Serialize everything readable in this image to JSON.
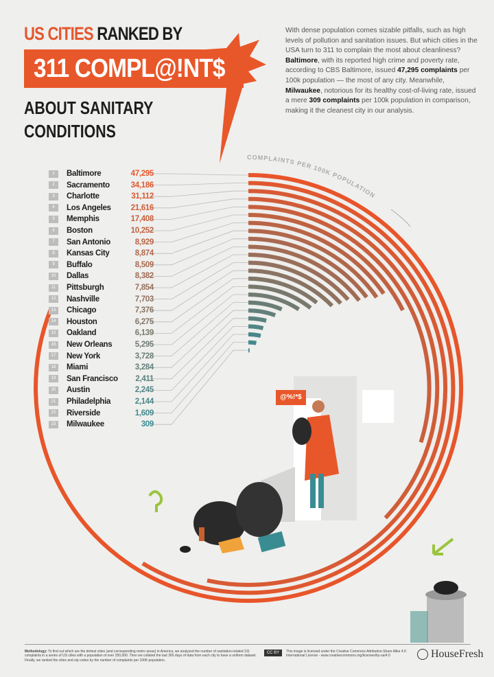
{
  "header": {
    "title_orange": "US CITIES",
    "title_dark": "RANKED BY",
    "banner": "311 COMPL@!NT$",
    "subtitle_line1": "ABOUT SANITARY",
    "subtitle_line2": "CONDITIONS"
  },
  "intro": {
    "p1": "With dense population comes sizable pitfalls, such as high levels of pollution and sanitation issues. But which cities in the USA turn to 311 to complain the most about cleanliness? ",
    "b1": "Baltimore",
    "p2": ", with its reported high crime and poverty rate, according to CBS Baltimore, issued ",
    "b2": "47,295 complaints",
    "p3": " per 100k population — the most of any city. Meanwhile, ",
    "b3": "Milwaukee",
    "p4": ", notorious for its healthy cost-of-living rate, issued a mere ",
    "b4": "309 complaints",
    "p5": " per 100k population in comparison, making it the cleanest city in our analysis."
  },
  "illustration": {
    "speech_bubble": "@%!*$"
  },
  "colors": {
    "high": "#e8552a",
    "low": "#3a8c93",
    "background": "#efefed"
  },
  "chart_data": {
    "type": "bar",
    "layout": "radial",
    "axis_label": "COMPLAINTS PER 100K POPULATION",
    "categories": [
      "Baltimore",
      "Sacramento",
      "Charlotte",
      "Los Angeles",
      "Memphis",
      "Boston",
      "San Antonio",
      "Kansas City",
      "Buffalo",
      "Dallas",
      "Pittsburgh",
      "Nashville",
      "Chicago",
      "Houston",
      "Oakland",
      "New Orleans",
      "New York",
      "Miami",
      "San Francisco",
      "Austin",
      "Philadelphia",
      "Riverside",
      "Milwaukee"
    ],
    "values": [
      47295,
      34186,
      31112,
      21616,
      17408,
      10252,
      8929,
      8874,
      8509,
      8382,
      7854,
      7703,
      7376,
      6275,
      6139,
      5295,
      3728,
      3284,
      2411,
      2245,
      2144,
      1609,
      309
    ],
    "value_labels": [
      "47,295",
      "34,186",
      "31,112",
      "21,616",
      "17,408",
      "10,252",
      "8,929",
      "8,874",
      "8,509",
      "8,382",
      "7,854",
      "7,703",
      "7,376",
      "6,275",
      "6,139",
      "5,295",
      "3,728",
      "3,284",
      "2,411",
      "2,245",
      "2,144",
      "1,609",
      "309"
    ],
    "ranks": [
      "1",
      "2",
      "3",
      "4",
      "5",
      "6",
      "7",
      "8",
      "9",
      "10",
      "11",
      "12",
      "13",
      "14",
      "15",
      "16",
      "17",
      "18",
      "19",
      "20",
      "21",
      "22",
      "23"
    ]
  },
  "footer": {
    "methodology_label": "Methodology:",
    "methodology": " To find out which are the dirtiest cities (and corresponding metro areas) in America, we analyzed the number of sanitation-related 311 complaints in a series of US cities with a population of over 250,000. Then we collated the last 365 days of data from each city to have a uniform dataset. Finally, we ranked the cities and zip codes by the number of complaints per 100K population.",
    "cc_badge": "CC BY SA",
    "license": "This image is licensed under the Creative Commons Attribution-Share Alike 4.0 International License - www.creativecommons.org/licenses/by-sa/4.0",
    "brand": "HouseFresh"
  }
}
